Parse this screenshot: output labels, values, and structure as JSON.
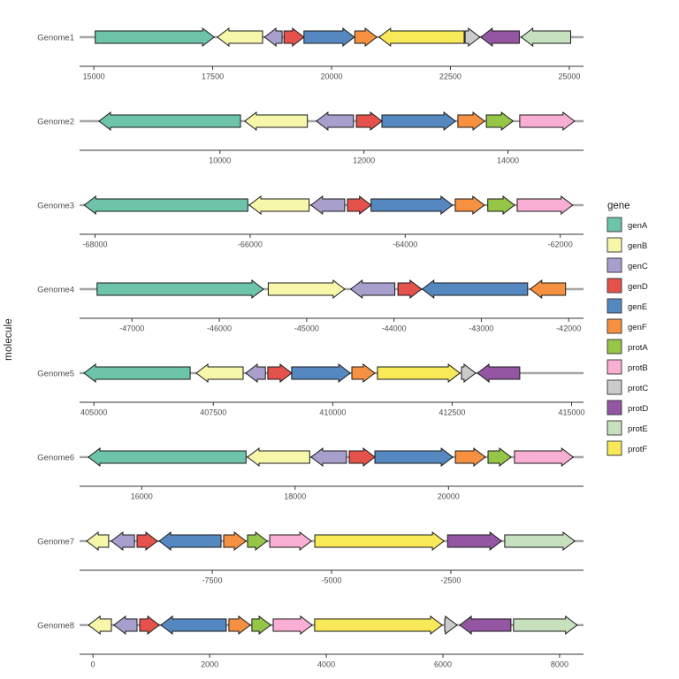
{
  "figure": {
    "y_axis_title": "molecule",
    "legend_title": "gene",
    "background": "#FFFFFF"
  },
  "palette": {
    "genA": "#6EC4AB",
    "genB": "#F7F7A9",
    "genC": "#A89FCC",
    "genD": "#E4524B",
    "genE": "#5588C1",
    "genF": "#F59140",
    "protA": "#95C648",
    "protB": "#F9AFD3",
    "protC": "#CBCBCB",
    "protD": "#9456A2",
    "protE": "#C7E0BE",
    "protF": "#F7E957"
  },
  "chart_data": {
    "type": "gene-arrow-map",
    "legend_position": "right",
    "legend_entries": [
      "genA",
      "genB",
      "genC",
      "genD",
      "genE",
      "genF",
      "protA",
      "protB",
      "protC",
      "protD",
      "protE",
      "protF"
    ],
    "molecules": [
      {
        "name": "Genome1",
        "xlim": [
          14700,
          25300
        ],
        "ticks": [
          15000,
          17500,
          20000,
          22500,
          25000
        ],
        "genes": [
          {
            "gene": "genA",
            "start": 15030,
            "end": 17530,
            "strand": 1
          },
          {
            "gene": "genB",
            "start": 17600,
            "end": 18550,
            "strand": -1
          },
          {
            "gene": "genC",
            "start": 18590,
            "end": 18960,
            "strand": -1
          },
          {
            "gene": "genD",
            "start": 19000,
            "end": 19420,
            "strand": 1
          },
          {
            "gene": "genE",
            "start": 19420,
            "end": 20480,
            "strand": 1
          },
          {
            "gene": "genF",
            "start": 20490,
            "end": 20950,
            "strand": 1
          },
          {
            "gene": "protF",
            "start": 21000,
            "end": 22790,
            "strand": -1
          },
          {
            "gene": "protC",
            "start": 22810,
            "end": 23120,
            "strand": 1
          },
          {
            "gene": "protD",
            "start": 23140,
            "end": 23950,
            "strand": -1
          },
          {
            "gene": "protE",
            "start": 23990,
            "end": 25030,
            "strand": -1
          }
        ]
      },
      {
        "name": "Genome2",
        "xlim": [
          8050,
          15050
        ],
        "ticks": [
          10000,
          12000,
          14000
        ],
        "genes": [
          {
            "gene": "genA",
            "start": 8320,
            "end": 10285,
            "strand": -1
          },
          {
            "gene": "genB",
            "start": 10345,
            "end": 11215,
            "strand": -1
          },
          {
            "gene": "genC",
            "start": 11340,
            "end": 11855,
            "strand": -1
          },
          {
            "gene": "genD",
            "start": 11895,
            "end": 12250,
            "strand": 1
          },
          {
            "gene": "genE",
            "start": 12250,
            "end": 13270,
            "strand": 1
          },
          {
            "gene": "genF",
            "start": 13305,
            "end": 13675,
            "strand": 1
          },
          {
            "gene": "protA",
            "start": 13700,
            "end": 14070,
            "strand": 1
          },
          {
            "gene": "protB",
            "start": 14165,
            "end": 14925,
            "strand": 1
          }
        ]
      },
      {
        "name": "Genome3",
        "xlim": [
          -68200,
          -61700
        ],
        "ticks": [
          -68000,
          -66000,
          -64000,
          -62000
        ],
        "genes": [
          {
            "gene": "genA",
            "start": -68140,
            "end": -66030,
            "strand": -1
          },
          {
            "gene": "genB",
            "start": -66010,
            "end": -65240,
            "strand": -1
          },
          {
            "gene": "genC",
            "start": -65215,
            "end": -64780,
            "strand": -1
          },
          {
            "gene": "genD",
            "start": -64745,
            "end": -64440,
            "strand": 1
          },
          {
            "gene": "genE",
            "start": -64440,
            "end": -63390,
            "strand": 1
          },
          {
            "gene": "genF",
            "start": -63355,
            "end": -62980,
            "strand": 1
          },
          {
            "gene": "protA",
            "start": -62935,
            "end": -62590,
            "strand": 1
          },
          {
            "gene": "protB",
            "start": -62555,
            "end": -61840,
            "strand": 1
          }
        ]
      },
      {
        "name": "Genome4",
        "xlim": [
          -47600,
          -41830
        ],
        "ticks": [
          -47000,
          -46000,
          -45000,
          -44000,
          -43000,
          -42000
        ],
        "genes": [
          {
            "gene": "genA",
            "start": -47400,
            "end": -45495,
            "strand": 1
          },
          {
            "gene": "genB",
            "start": -45440,
            "end": -44565,
            "strand": 1
          },
          {
            "gene": "genC",
            "start": -44495,
            "end": -43990,
            "strand": -1
          },
          {
            "gene": "genD",
            "start": -43955,
            "end": -43685,
            "strand": 1
          },
          {
            "gene": "genE",
            "start": -43675,
            "end": -42470,
            "strand": -1
          },
          {
            "gene": "genF",
            "start": -42440,
            "end": -42035,
            "strand": -1
          }
        ]
      },
      {
        "name": "Genome5",
        "xlim": [
          404700,
          415250
        ],
        "ticks": [
          405000,
          407500,
          410000,
          412500,
          415000
        ],
        "genes": [
          {
            "gene": "genA",
            "start": 404795,
            "end": 407015,
            "strand": -1
          },
          {
            "gene": "genB",
            "start": 407145,
            "end": 408125,
            "strand": -1
          },
          {
            "gene": "genC",
            "start": 408180,
            "end": 408590,
            "strand": -1
          },
          {
            "gene": "genD",
            "start": 408640,
            "end": 409140,
            "strand": 1
          },
          {
            "gene": "genE",
            "start": 409140,
            "end": 410365,
            "strand": 1
          },
          {
            "gene": "genF",
            "start": 410400,
            "end": 410880,
            "strand": 1
          },
          {
            "gene": "protF",
            "start": 410935,
            "end": 412660,
            "strand": 1
          },
          {
            "gene": "protC",
            "start": 412695,
            "end": 412990,
            "strand": 1
          },
          {
            "gene": "protD",
            "start": 413030,
            "end": 413915,
            "strand": -1
          }
        ]
      },
      {
        "name": "Genome6",
        "xlim": [
          15190,
          21760
        ],
        "ticks": [
          16000,
          18000,
          20000
        ],
        "genes": [
          {
            "gene": "genA",
            "start": 15305,
            "end": 17360,
            "strand": -1
          },
          {
            "gene": "genB",
            "start": 17380,
            "end": 18190,
            "strand": -1
          },
          {
            "gene": "genC",
            "start": 18210,
            "end": 18670,
            "strand": -1
          },
          {
            "gene": "genD",
            "start": 18705,
            "end": 19040,
            "strand": 1
          },
          {
            "gene": "genE",
            "start": 19040,
            "end": 20055,
            "strand": 1
          },
          {
            "gene": "genF",
            "start": 20090,
            "end": 20480,
            "strand": 1
          },
          {
            "gene": "protA",
            "start": 20515,
            "end": 20815,
            "strand": 1
          },
          {
            "gene": "protB",
            "start": 20860,
            "end": 21625,
            "strand": 1
          }
        ]
      },
      {
        "name": "Genome7",
        "xlim": [
          -10280,
          280
        ],
        "ticks": [
          -7500,
          -5000,
          -2500
        ],
        "genes": [
          {
            "gene": "genB",
            "start": -10130,
            "end": -9670,
            "strand": -1
          },
          {
            "gene": "genC",
            "start": -9615,
            "end": -9130,
            "strand": -1
          },
          {
            "gene": "genD",
            "start": -9075,
            "end": -8650,
            "strand": 1
          },
          {
            "gene": "genE",
            "start": -8610,
            "end": -7315,
            "strand": -1
          },
          {
            "gene": "genF",
            "start": -7260,
            "end": -6795,
            "strand": 1
          },
          {
            "gene": "protA",
            "start": -6760,
            "end": -6350,
            "strand": 1
          },
          {
            "gene": "protB",
            "start": -6295,
            "end": -5425,
            "strand": 1
          },
          {
            "gene": "protF",
            "start": -5350,
            "end": -2645,
            "strand": 1
          },
          {
            "gene": "protD",
            "start": -2570,
            "end": -1440,
            "strand": 1
          },
          {
            "gene": "protE",
            "start": -1370,
            "end": 95,
            "strand": 1
          }
        ]
      },
      {
        "name": "Genome8",
        "xlim": [
          -230,
          8410
        ],
        "ticks": [
          0,
          2000,
          4000,
          6000,
          8000
        ],
        "genes": [
          {
            "gene": "genB",
            "start": -75,
            "end": 315,
            "strand": -1
          },
          {
            "gene": "genC",
            "start": 360,
            "end": 755,
            "strand": -1
          },
          {
            "gene": "genD",
            "start": 800,
            "end": 1135,
            "strand": 1
          },
          {
            "gene": "genE",
            "start": 1165,
            "end": 2285,
            "strand": -1
          },
          {
            "gene": "genF",
            "start": 2330,
            "end": 2695,
            "strand": 1
          },
          {
            "gene": "protA",
            "start": 2725,
            "end": 3045,
            "strand": 1
          },
          {
            "gene": "protB",
            "start": 3090,
            "end": 3755,
            "strand": 1
          },
          {
            "gene": "protF",
            "start": 3800,
            "end": 5985,
            "strand": 1
          },
          {
            "gene": "protC",
            "start": 6030,
            "end": 6240,
            "strand": 1
          },
          {
            "gene": "protD",
            "start": 6290,
            "end": 7165,
            "strand": -1
          },
          {
            "gene": "protE",
            "start": 7210,
            "end": 8300,
            "strand": 1
          }
        ]
      }
    ]
  }
}
